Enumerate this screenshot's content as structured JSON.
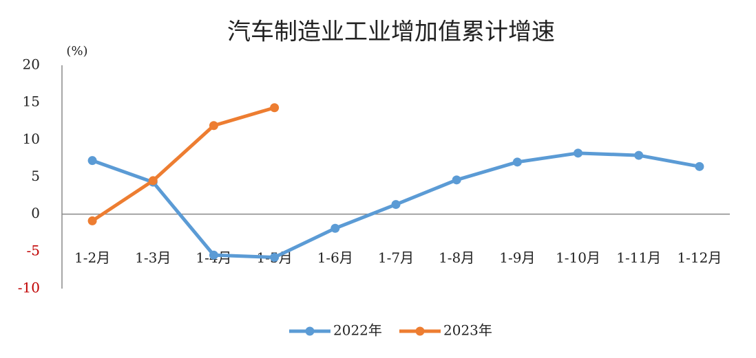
{
  "chart_data": {
    "type": "line",
    "title": "汽车制造业工业增加值累计增速",
    "y_label": "(%)",
    "categories": [
      "1-2月",
      "1-3月",
      "1-4月",
      "1-5月",
      "1-6月",
      "1-7月",
      "1-8月",
      "1-9月",
      "1-10月",
      "1-11月",
      "1-12月"
    ],
    "series": [
      {
        "name": "2022年",
        "color": "#5b9bd5",
        "values": [
          7.2,
          4.3,
          -5.5,
          -5.8,
          -1.9,
          1.3,
          4.6,
          7.0,
          8.2,
          7.9,
          6.4
        ]
      },
      {
        "name": "2023年",
        "color": "#ed7d31",
        "values": [
          -0.9,
          4.5,
          11.9,
          14.3,
          null,
          null,
          null,
          null,
          null,
          null,
          null
        ]
      }
    ],
    "ylim": [
      -10,
      20
    ],
    "yticks": [
      -10,
      -5,
      0,
      5,
      10,
      15,
      20
    ],
    "negative_tick_color": "#c00000",
    "legend": "bottom"
  }
}
